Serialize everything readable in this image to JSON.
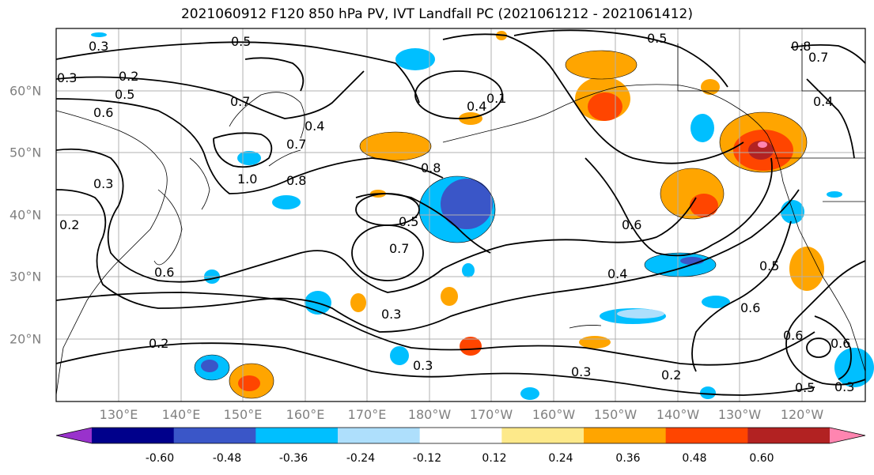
{
  "title": "2021060912 F120 850 hPa PV, IVT Landfall PC (2021061212 - 2021061412)",
  "lon_labels": [
    "130°E",
    "140°E",
    "150°E",
    "160°E",
    "170°E",
    "180°W",
    "170°W",
    "160°W",
    "150°W",
    "140°W",
    "130°W",
    "120°W"
  ],
  "lat_labels": [
    "60°N",
    "50°N",
    "40°N",
    "30°N",
    "20°N"
  ],
  "colorbar": {
    "colors": [
      "#9932cc",
      "#00008b",
      "#3a56c8",
      "#00bfff",
      "#aedffc",
      "#ffffff",
      "#fde98a",
      "#ffa500",
      "#ff4500",
      "#b22222",
      "#ff85b0"
    ],
    "tick_labels": [
      "-0.60",
      "-0.48",
      "-0.36",
      "-0.24",
      "-0.12",
      "0.12",
      "0.24",
      "0.36",
      "0.48",
      "0.60"
    ]
  },
  "contour_labels": [
    "0.5",
    "0.3",
    "0.3",
    "0.2",
    "0.5",
    "0.6",
    "0.7",
    "0.4",
    "0.4",
    "0.1",
    "0.7",
    "1.0",
    "0.8",
    "0.3",
    "0.2",
    "0.6",
    "0.8",
    "0.5",
    "0.7",
    "0.3",
    "0.2",
    "0.3",
    "0.6",
    "0.4",
    "0.6",
    "0.5",
    "0.6",
    "0.6",
    "0.5",
    "0.3",
    "0.2",
    "0.5",
    "0.8",
    "0.7",
    "0.4",
    "0.3"
  ]
}
